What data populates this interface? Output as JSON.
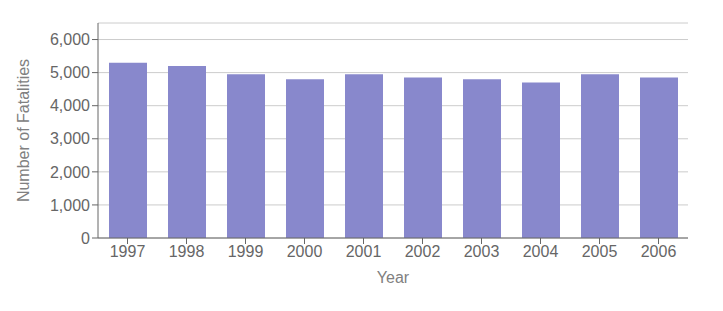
{
  "chart_data": {
    "type": "bar",
    "xlabel": "Year",
    "ylabel": "Number of Fatalities",
    "categories": [
      "1997",
      "1998",
      "1999",
      "2000",
      "2001",
      "2002",
      "2003",
      "2004",
      "2005",
      "2006"
    ],
    "values": [
      5300,
      5200,
      4950,
      4800,
      4950,
      4850,
      4800,
      4700,
      4950,
      4850
    ],
    "color": "#8888cc",
    "ylim": [
      0,
      6500
    ],
    "yticks": [
      0,
      {
        "value": 1000,
        "label": "1,000"
      },
      {
        "value": 2000,
        "label": "2,000"
      },
      {
        "value": 3000,
        "label": "3,000"
      },
      {
        "value": 4000,
        "label": "4,000"
      },
      {
        "value": 5000,
        "label": "5,000"
      },
      {
        "value": 6000,
        "label": "6,000"
      }
    ],
    "grid": true
  }
}
